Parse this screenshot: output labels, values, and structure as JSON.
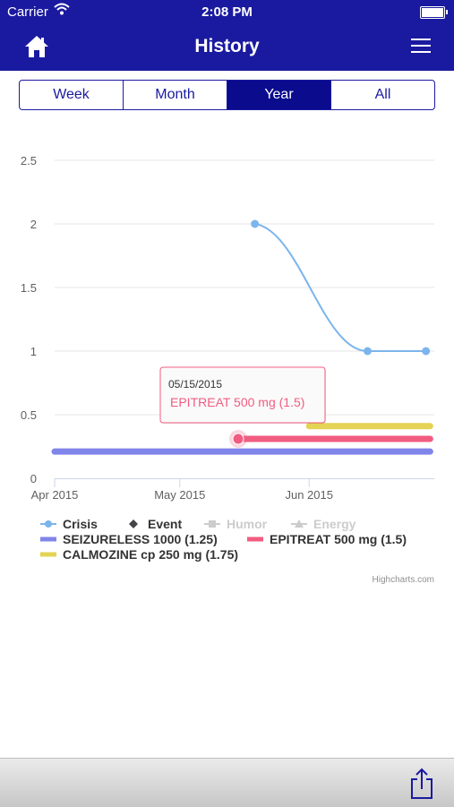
{
  "status_bar": {
    "carrier": "Carrier",
    "time": "2:08 PM"
  },
  "header": {
    "title": "History",
    "home_icon": "home-icon",
    "menu_icon": "hamburger-menu-icon"
  },
  "tabs": [
    {
      "label": "Week",
      "active": false
    },
    {
      "label": "Month",
      "active": false
    },
    {
      "label": "Year",
      "active": true
    },
    {
      "label": "All",
      "active": false
    }
  ],
  "chart_data": {
    "type": "line",
    "x_type": "date",
    "x_range": [
      "2015-04-01",
      "2015-07-01"
    ],
    "x_ticks": [
      "2015-04-01",
      "2015-05-01",
      "2015-06-01"
    ],
    "x_tick_labels": [
      "Apr 2015",
      "May 2015",
      "Jun 2015"
    ],
    "y_range": [
      0,
      2.5
    ],
    "y_ticks": [
      0,
      0.5,
      1,
      1.5,
      2,
      2.5
    ],
    "y_tick_labels": [
      "0",
      "0.5",
      "1",
      "1.5",
      "2",
      "2.5"
    ],
    "grid": true,
    "legend_placement": "bottom-left",
    "series": [
      {
        "name": "Crisis",
        "type": "spline",
        "color": "#7cb5ec",
        "marker": "circle",
        "visible": true,
        "points": [
          {
            "x": "2015-05-19",
            "y": 2
          },
          {
            "x": "2015-06-15",
            "y": 1
          },
          {
            "x": "2015-06-29",
            "y": 1
          }
        ]
      },
      {
        "name": "Event",
        "type": "marker",
        "color": "#434348",
        "marker": "diamond",
        "visible": true,
        "points": []
      },
      {
        "name": "Humor",
        "type": "line",
        "color": "#cccccc",
        "marker": "square",
        "visible": false,
        "points": []
      },
      {
        "name": "Energy",
        "type": "line",
        "color": "#cccccc",
        "marker": "triangle",
        "visible": false,
        "points": []
      },
      {
        "name": "SEIZURELESS 1000 (1.25)",
        "type": "range",
        "color": "#8085e9",
        "start": "2015-04-01",
        "end": "2015-06-30",
        "y": 0.21
      },
      {
        "name": "EPITREAT 500 mg (1.5)",
        "type": "range",
        "color": "#f15c80",
        "start": "2015-05-15",
        "end": "2015-06-30",
        "y": 0.31
      },
      {
        "name": "CALMOZINE cp 250 mg (1.75)",
        "type": "range",
        "color": "#e4d354",
        "start": "2015-06-01",
        "end": "2015-06-30",
        "y": 0.41
      }
    ],
    "tooltip": {
      "date": "05/15/2015",
      "series": "EPITREAT 500 mg (1.5)",
      "x": "2015-05-15",
      "y": 0.31
    },
    "credits": "Highcharts.com"
  },
  "bottom_toolbar": {
    "share_icon": "share-icon"
  }
}
